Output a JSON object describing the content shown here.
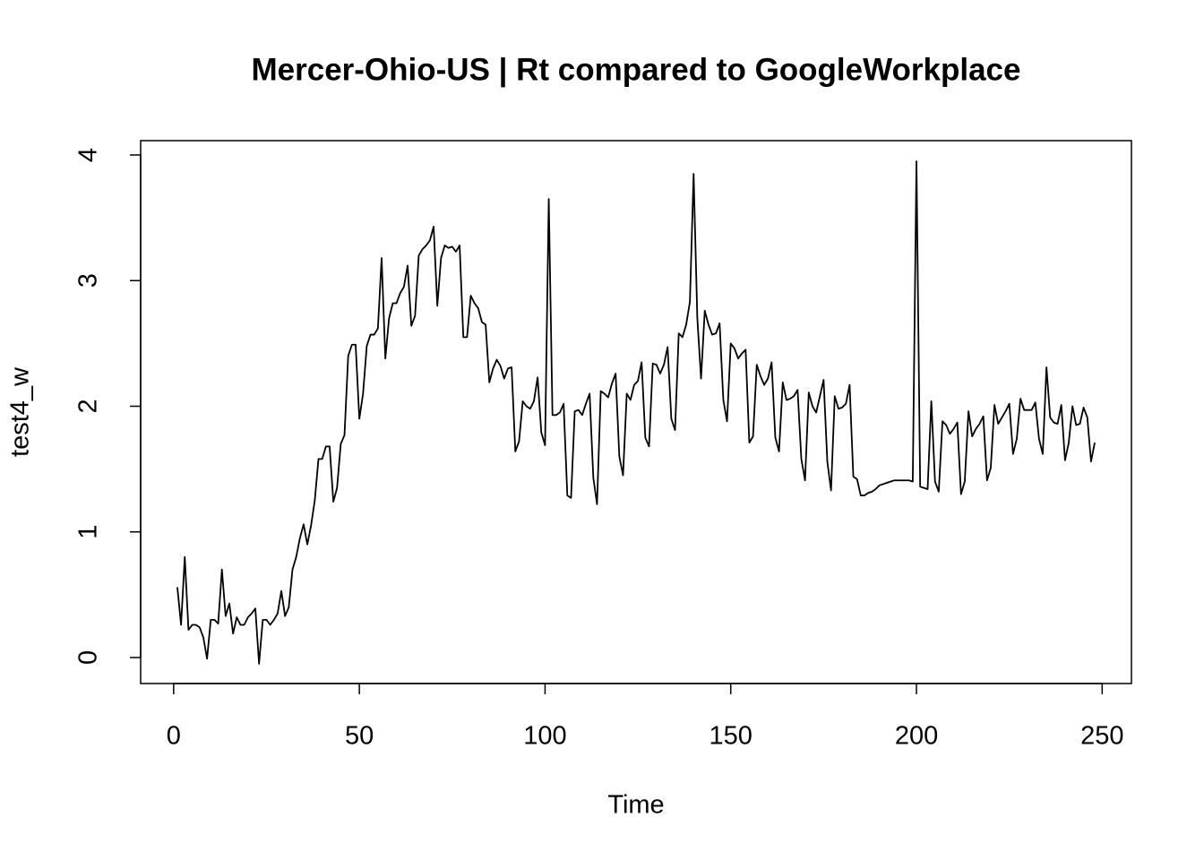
{
  "chart_data": {
    "type": "line",
    "title": "Mercer-Ohio-US | Rt compared to GoogleWorkplace",
    "xlabel": "Time",
    "ylabel": "test4_w",
    "x": [
      1,
      2,
      3,
      4,
      5,
      6,
      7,
      8,
      9,
      10,
      11,
      12,
      13,
      14,
      15,
      16,
      17,
      18,
      19,
      20,
      21,
      22,
      23,
      24,
      25,
      26,
      27,
      28,
      29,
      30,
      31,
      32,
      33,
      34,
      35,
      36,
      37,
      38,
      39,
      40,
      41,
      42,
      43,
      44,
      45,
      46,
      47,
      48,
      49,
      50,
      51,
      52,
      53,
      54,
      55,
      56,
      57,
      58,
      59,
      60,
      61,
      62,
      63,
      64,
      65,
      66,
      67,
      68,
      69,
      70,
      71,
      72,
      73,
      74,
      75,
      76,
      77,
      78,
      79,
      80,
      81,
      82,
      83,
      84,
      85,
      86,
      87,
      88,
      89,
      90,
      91,
      92,
      93,
      94,
      95,
      96,
      97,
      98,
      99,
      100,
      101,
      102,
      103,
      104,
      105,
      106,
      107,
      108,
      109,
      110,
      111,
      112,
      113,
      114,
      115,
      116,
      117,
      118,
      119,
      120,
      121,
      122,
      123,
      124,
      125,
      126,
      127,
      128,
      129,
      130,
      131,
      132,
      133,
      134,
      135,
      136,
      137,
      138,
      139,
      140,
      141,
      142,
      143,
      144,
      145,
      146,
      147,
      148,
      149,
      150,
      151,
      152,
      153,
      154,
      155,
      156,
      157,
      158,
      159,
      160,
      161,
      162,
      163,
      164,
      165,
      166,
      167,
      168,
      169,
      170,
      171,
      172,
      173,
      174,
      175,
      176,
      177,
      178,
      179,
      180,
      181,
      182,
      183,
      184,
      185,
      186,
      187,
      188,
      189,
      190,
      191,
      192,
      193,
      194,
      195,
      196,
      197,
      198,
      199,
      200,
      201,
      202,
      203,
      204,
      205,
      206,
      207,
      208,
      209,
      210,
      211,
      212,
      213,
      214,
      215,
      216,
      217,
      218,
      219,
      220,
      221,
      222,
      223,
      224,
      225,
      226,
      227,
      228,
      229,
      230,
      231,
      232,
      233,
      234,
      235,
      236,
      237,
      238,
      239,
      240,
      241,
      242,
      243,
      244,
      245,
      246,
      247,
      248
    ],
    "series": [
      {
        "name": "test4_w",
        "color": "#000000",
        "values": [
          0.56,
          0.26,
          0.8,
          0.22,
          0.26,
          0.26,
          0.24,
          0.16,
          -0.01,
          0.3,
          0.3,
          0.27,
          0.7,
          0.33,
          0.43,
          0.19,
          0.32,
          0.26,
          0.26,
          0.32,
          0.35,
          0.39,
          -0.05,
          0.3,
          0.3,
          0.26,
          0.3,
          0.35,
          0.53,
          0.33,
          0.4,
          0.7,
          0.8,
          0.95,
          1.06,
          0.9,
          1.05,
          1.25,
          1.58,
          1.58,
          1.68,
          1.68,
          1.24,
          1.35,
          1.7,
          1.77,
          2.4,
          2.49,
          2.49,
          1.9,
          2.1,
          2.48,
          2.57,
          2.57,
          2.62,
          3.18,
          2.38,
          2.7,
          2.82,
          2.82,
          2.9,
          2.95,
          3.12,
          2.64,
          2.72,
          3.2,
          3.25,
          3.28,
          3.32,
          3.43,
          2.8,
          3.18,
          3.28,
          3.26,
          3.27,
          3.23,
          3.28,
          2.55,
          2.55,
          2.88,
          2.82,
          2.78,
          2.67,
          2.65,
          2.19,
          2.3,
          2.37,
          2.32,
          2.22,
          2.3,
          2.31,
          1.64,
          1.72,
          2.04,
          2.0,
          1.98,
          2.04,
          2.23,
          1.79,
          1.69,
          3.65,
          1.93,
          1.93,
          1.95,
          2.02,
          1.29,
          1.27,
          1.96,
          1.97,
          1.93,
          2.02,
          2.1,
          1.43,
          1.22,
          2.12,
          2.1,
          2.07,
          2.18,
          2.26,
          1.6,
          1.45,
          2.1,
          2.05,
          2.17,
          2.2,
          2.35,
          1.75,
          1.68,
          2.34,
          2.33,
          2.26,
          2.33,
          2.47,
          1.9,
          1.81,
          2.58,
          2.55,
          2.65,
          2.83,
          3.85,
          2.7,
          2.22,
          2.76,
          2.65,
          2.57,
          2.58,
          2.66,
          2.05,
          1.88,
          2.5,
          2.46,
          2.38,
          2.42,
          2.45,
          1.71,
          1.76,
          2.33,
          2.24,
          2.17,
          2.22,
          2.35,
          1.75,
          1.64,
          2.19,
          2.05,
          2.06,
          2.08,
          2.13,
          1.58,
          1.41,
          2.11,
          2.0,
          1.95,
          2.08,
          2.21,
          1.56,
          1.33,
          2.08,
          1.98,
          1.99,
          2.02,
          2.17,
          1.44,
          1.42,
          1.29,
          1.29,
          1.31,
          1.32,
          1.34,
          1.37,
          1.38,
          1.39,
          1.4,
          1.41,
          1.41,
          1.41,
          1.41,
          1.41,
          1.4,
          3.95,
          1.36,
          1.35,
          1.34,
          2.04,
          1.4,
          1.32,
          1.88,
          1.85,
          1.78,
          1.82,
          1.87,
          1.3,
          1.4,
          1.96,
          1.76,
          1.82,
          1.86,
          1.92,
          1.41,
          1.51,
          2.01,
          1.86,
          1.91,
          1.96,
          2.02,
          1.62,
          1.74,
          2.06,
          1.97,
          1.97,
          1.97,
          2.03,
          1.74,
          1.62,
          2.31,
          1.91,
          1.87,
          1.86,
          2.01,
          1.57,
          1.71,
          2.0,
          1.85,
          1.86,
          1.99,
          1.91,
          1.56,
          1.71
        ]
      }
    ],
    "xlim": [
      -8.88,
      257.88
    ],
    "xticks": [
      0,
      50,
      100,
      150,
      200,
      250
    ],
    "ylim": [
      -0.207,
      4.114
    ],
    "yticks": [
      0,
      1,
      2,
      3,
      4
    ]
  }
}
